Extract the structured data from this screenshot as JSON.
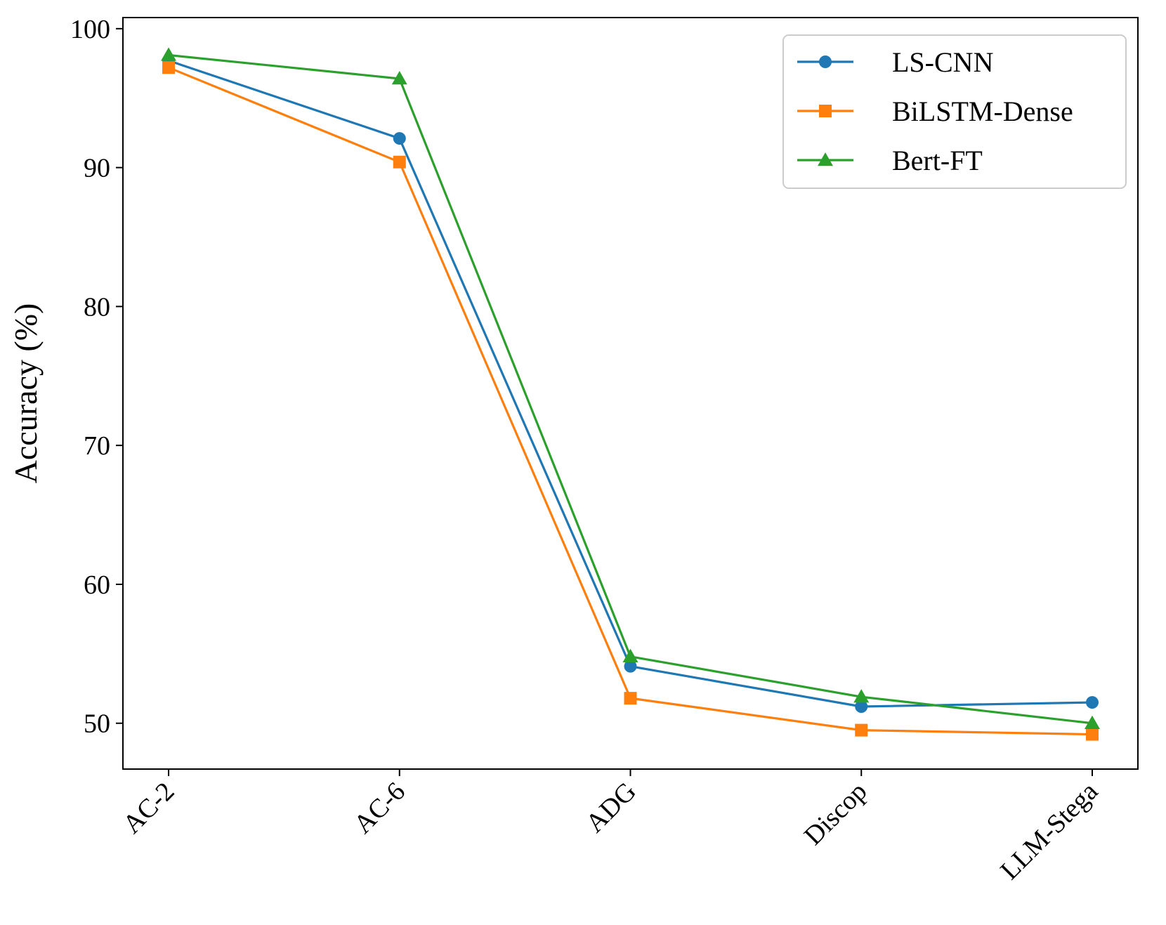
{
  "chart_data": {
    "type": "line",
    "title": "",
    "xlabel": "",
    "ylabel": "Accuracy (%)",
    "categories": [
      "AC-2",
      "AC-6",
      "ADG",
      "Discop",
      "LLM-Stega"
    ],
    "ylim": [
      46.7,
      100.8
    ],
    "yticks": [
      50,
      60,
      70,
      80,
      90,
      100
    ],
    "grid": false,
    "legend_position": "top-right",
    "series": [
      {
        "name": "LS-CNN",
        "color": "#1f77b4",
        "marker": "circle",
        "values": [
          97.7,
          92.1,
          54.1,
          51.2,
          51.5
        ]
      },
      {
        "name": "BiLSTM-Dense",
        "color": "#ff7f0e",
        "marker": "square",
        "values": [
          97.2,
          90.4,
          51.8,
          49.5,
          49.2
        ]
      },
      {
        "name": "Bert-FT",
        "color": "#2ca02c",
        "marker": "triangle",
        "values": [
          98.1,
          96.4,
          54.8,
          51.9,
          50.0
        ]
      }
    ]
  }
}
